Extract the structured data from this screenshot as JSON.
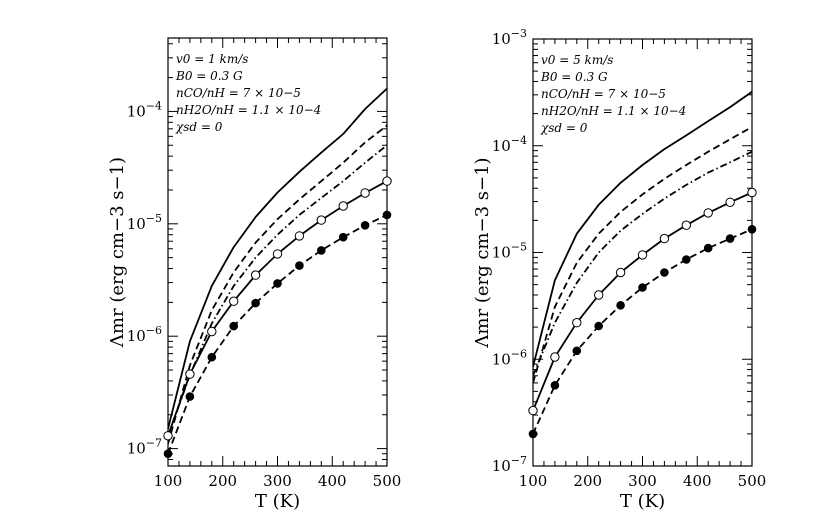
{
  "chart_data": [
    {
      "type": "line",
      "panel": "left",
      "xlabel": "T (K)",
      "ylabel": "Λmr (erg cm−3 s−1)",
      "xlim": [
        100,
        500
      ],
      "ylim": [
        7e-08,
        0.00045
      ],
      "yscale": "log",
      "x_ticks": [
        100,
        200,
        300,
        400,
        500
      ],
      "y_ticks": [
        {
          "value": 1e-07,
          "mantissa": "10",
          "exponent": "−7"
        },
        {
          "value": 1e-06,
          "mantissa": "10",
          "exponent": "−6"
        },
        {
          "value": 1e-05,
          "mantissa": "10",
          "exponent": "−5"
        },
        {
          "value": 0.0001,
          "mantissa": "10",
          "exponent": "−4"
        }
      ],
      "annotations": [
        "v0 = 1 km/s",
        "B0 = 0.3 G",
        "nCO/nH = 7 × 10−5",
        "nH2O/nH = 1.1 × 10−4",
        "χsd = 0"
      ],
      "x": [
        100,
        140,
        180,
        220,
        260,
        300,
        340,
        380,
        420,
        460,
        500
      ],
      "series": [
        {
          "name": "solid",
          "style": "solid",
          "markers": "none",
          "values": [
            1.5e-07,
            9e-07,
            2.8e-06,
            6.2e-06,
            1.15e-05,
            1.9e-05,
            2.9e-05,
            4.3e-05,
            6.3e-05,
            0.000105,
            0.00016
          ]
        },
        {
          "name": "dashed",
          "style": "dashed",
          "markers": "none",
          "values": [
            1.1e-07,
            5.5e-07,
            1.7e-06,
            3.7e-06,
            6.8e-06,
            1.1e-05,
            1.65e-05,
            2.4e-05,
            3.5e-05,
            5.3e-05,
            7.5e-05
          ]
        },
        {
          "name": "dash-dot",
          "style": "dashdot",
          "markers": "none",
          "values": [
            1.3e-07,
            4.5e-07,
            1.3e-06,
            2.8e-06,
            5e-06,
            8e-06,
            1.2e-05,
            1.7e-05,
            2.4e-05,
            3.5e-05,
            5e-05
          ]
        },
        {
          "name": "solid-open-circles",
          "style": "solid",
          "markers": "open",
          "values": [
            1.3e-07,
            4.6e-07,
            1.1e-06,
            2.05e-06,
            3.5e-06,
            5.4e-06,
            7.8e-06,
            1.08e-05,
            1.44e-05,
            1.88e-05,
            2.4e-05
          ]
        },
        {
          "name": "dashed-filled-circles",
          "style": "dashed",
          "markers": "filled",
          "values": [
            9e-08,
            2.9e-07,
            6.5e-07,
            1.23e-06,
            1.97e-06,
            2.95e-06,
            4.25e-06,
            5.8e-06,
            7.6e-06,
            9.7e-06,
            1.2e-05
          ]
        }
      ]
    },
    {
      "type": "line",
      "panel": "right",
      "xlabel": "T (K)",
      "ylabel": "Λmr (erg cm−3 s−1)",
      "xlim": [
        100,
        500
      ],
      "ylim": [
        1e-07,
        0.001
      ],
      "yscale": "log",
      "x_ticks": [
        100,
        200,
        300,
        400,
        500
      ],
      "y_ticks": [
        {
          "value": 1e-07,
          "mantissa": "10",
          "exponent": "−7"
        },
        {
          "value": 1e-06,
          "mantissa": "10",
          "exponent": "−6"
        },
        {
          "value": 1e-05,
          "mantissa": "10",
          "exponent": "−5"
        },
        {
          "value": 0.0001,
          "mantissa": "10",
          "exponent": "−4"
        },
        {
          "value": 0.001,
          "mantissa": "10",
          "exponent": "−3"
        }
      ],
      "annotations": [
        "v0 = 5 km/s",
        "B0 = 0.3 G",
        "nCO/nH = 7 × 10−5",
        "nH2O/nH = 1.1 × 10−4",
        "χsd = 0"
      ],
      "x": [
        100,
        140,
        180,
        220,
        260,
        300,
        340,
        380,
        420,
        460,
        500
      ],
      "series": [
        {
          "name": "solid",
          "style": "solid",
          "markers": "none",
          "values": [
            8.5e-07,
            5.5e-06,
            1.5e-05,
            2.8e-05,
            4.5e-05,
            6.6e-05,
            9.3e-05,
            0.000125,
            0.00017,
            0.00023,
            0.00032
          ]
        },
        {
          "name": "dashed",
          "style": "dashed",
          "markers": "none",
          "values": [
            6e-07,
            3.1e-06,
            8e-06,
            1.5e-05,
            2.4e-05,
            3.5e-05,
            4.9e-05,
            6.6e-05,
            8.8e-05,
            0.000115,
            0.00015
          ]
        },
        {
          "name": "dash-dot",
          "style": "dashdot",
          "markers": "none",
          "values": [
            7e-07,
            2.2e-06,
            5.2e-06,
            1e-05,
            1.6e-05,
            2.3e-05,
            3.2e-05,
            4.3e-05,
            5.6e-05,
            7e-05,
            8.8e-05
          ]
        },
        {
          "name": "solid-open-circles",
          "style": "solid",
          "markers": "open",
          "values": [
            3.3e-07,
            1.05e-06,
            2.2e-06,
            4e-06,
            6.5e-06,
            9.5e-06,
            1.35e-05,
            1.8e-05,
            2.35e-05,
            2.95e-05,
            3.65e-05
          ]
        },
        {
          "name": "dashed-filled-circles",
          "style": "dashed",
          "markers": "filled",
          "values": [
            2e-07,
            5.7e-07,
            1.2e-06,
            2.05e-06,
            3.2e-06,
            4.7e-06,
            6.5e-06,
            8.6e-06,
            1.1e-05,
            1.35e-05,
            1.65e-05
          ]
        }
      ]
    }
  ]
}
